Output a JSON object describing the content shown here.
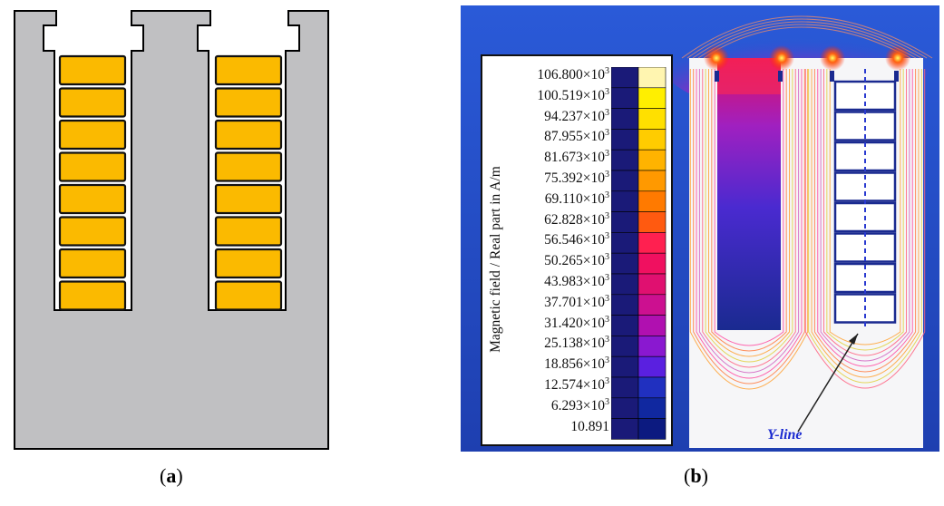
{
  "panel_a": {
    "label": "a"
  },
  "panel_b": {
    "label": "b",
    "legend": {
      "title": "Magnetic field / Real part in A/m",
      "ticks": [
        {
          "mant": "106.800",
          "exp": "3"
        },
        {
          "mant": "100.519",
          "exp": "3"
        },
        {
          "mant": "94.237",
          "exp": "3"
        },
        {
          "mant": "87.955",
          "exp": "3"
        },
        {
          "mant": "81.673",
          "exp": "3"
        },
        {
          "mant": "75.392",
          "exp": "3"
        },
        {
          "mant": "69.110",
          "exp": "3"
        },
        {
          "mant": "62.828",
          "exp": "3"
        },
        {
          "mant": "56.546",
          "exp": "3"
        },
        {
          "mant": "50.265",
          "exp": "3"
        },
        {
          "mant": "43.983",
          "exp": "3"
        },
        {
          "mant": "37.701",
          "exp": "3"
        },
        {
          "mant": "31.420",
          "exp": "3"
        },
        {
          "mant": "25.138",
          "exp": "3"
        },
        {
          "mant": "18.856",
          "exp": "3"
        },
        {
          "mant": "12.574",
          "exp": "3"
        },
        {
          "mant": "6.293",
          "exp": "3"
        },
        {
          "mant": "10.891",
          "exp": ""
        }
      ],
      "colors": [
        "#fff5b0",
        "#ffef00",
        "#ffe000",
        "#ffcc00",
        "#ffb300",
        "#ff9900",
        "#ff7a00",
        "#ff5a10",
        "#ff2050",
        "#f01060",
        "#e01070",
        "#cc1090",
        "#b010b0",
        "#8a18d0",
        "#5a20e0",
        "#2030c0",
        "#1028a0",
        "#0c1a80"
      ]
    },
    "annotation": "Y-line"
  }
}
